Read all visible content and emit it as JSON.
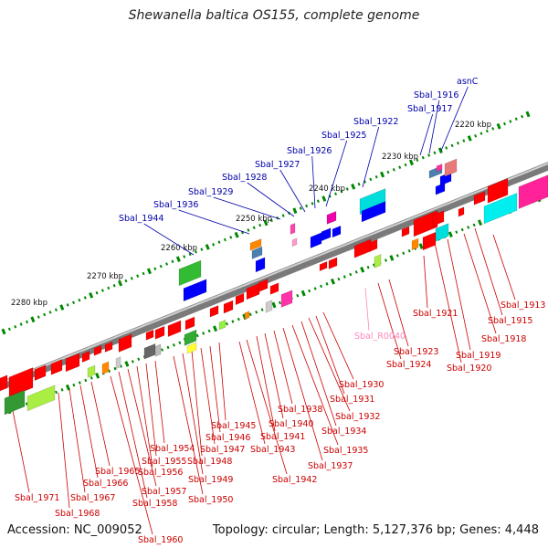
{
  "title": "Shewanella baltica OS155, complete genome",
  "accession_label": "Accession: NC_009052",
  "topology_label": "Topology: circular; Length: 5,127,376 bp; Genes: 4,448",
  "colors": {
    "forward": "#ff0000",
    "reverse": "#0000ff",
    "rna": "#ff99cc",
    "backbone": "#7a7a7a",
    "tick": "#008800",
    "label_top": "#0000aa",
    "label_bottom": "#cc0000",
    "label_rna": "#ff88bb"
  },
  "scale_labels": [
    "2220 kbp",
    "2230 kbp",
    "2240 kbp",
    "2250 kbp",
    "2260 kbp",
    "2270 kbp",
    "2280 kbp"
  ],
  "genes_top": [
    "asnC",
    "Sbal_1916",
    "Sbal_1917",
    "Sbal_1922",
    "Sbal_1925",
    "Sbal_1926",
    "Sbal_1927",
    "Sbal_1928",
    "Sbal_1929",
    "Sbal_1936",
    "Sbal_1944"
  ],
  "genes_bottom": [
    "Sbal_1913",
    "Sbal_1915",
    "Sbal_1918",
    "Sbal_1919",
    "Sbal_1920",
    "Sbal_1921",
    "Sbal_R0040",
    "Sbal_1923",
    "Sbal_1924",
    "Sbal_1930",
    "Sbal_1931",
    "Sbal_1932",
    "Sbal_1934",
    "Sbal_1935",
    "Sbal_1937",
    "Sbal_1938",
    "Sbal_1940",
    "Sbal_1941",
    "Sbal_1942",
    "Sbal_1943",
    "Sbal_1945",
    "Sbal_1946",
    "Sbal_1947",
    "Sbal_1948",
    "Sbal_1949",
    "Sbal_1950",
    "Sbal_1954",
    "Sbal_1955",
    "Sbal_1956",
    "Sbal_1957",
    "Sbal_1958",
    "Sbal_1960",
    "Sbal_1965",
    "Sbal_1966",
    "Sbal_1967",
    "Sbal_1968",
    "Sbal_1971"
  ]
}
